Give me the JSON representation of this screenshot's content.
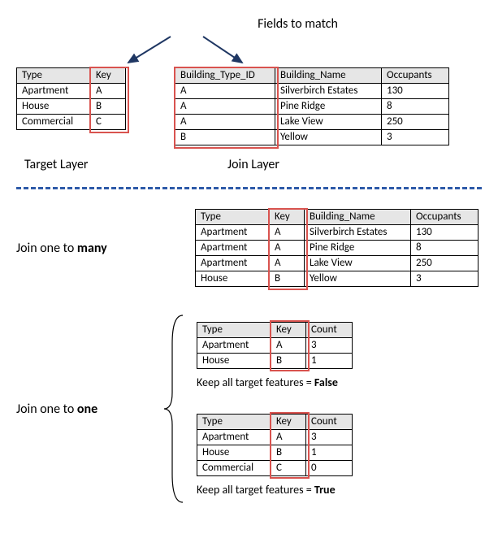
{
  "topLabel": "Fields to match",
  "targetLayerLabel": "Target Layer",
  "joinLayerLabel": "Join Layer",
  "targetTable": {
    "columns": [
      "Type",
      "Key"
    ],
    "rows": [
      [
        "Apartment",
        "A"
      ],
      [
        "House",
        "B"
      ],
      [
        "Commercial",
        "C"
      ]
    ],
    "highlightColIndex": 1
  },
  "joinTable": {
    "columns": [
      "Building_Type_ID",
      "Building_Name",
      "Occupants"
    ],
    "rows": [
      [
        "A",
        "Silverbirch Estates",
        "130"
      ],
      [
        "A",
        "Pine Ridge",
        "8"
      ],
      [
        "A",
        "Lake View",
        "250"
      ],
      [
        "B",
        "Yellow",
        "3"
      ]
    ],
    "highlightColIndex": 0
  },
  "oneToManyLabel_pre": "Join one to ",
  "oneToManyLabel_bold": "many",
  "oneToManyTable": {
    "columns": [
      "Type",
      "Key",
      "Building_Name",
      "Occupants"
    ],
    "rows": [
      [
        "Apartment",
        "A",
        "Silverbirch Estates",
        "130"
      ],
      [
        "Apartment",
        "A",
        "Pine Ridge",
        "8"
      ],
      [
        "Apartment",
        "A",
        "Lake View",
        "250"
      ],
      [
        "House",
        "B",
        "Yellow",
        "3"
      ]
    ],
    "highlightColIndex": 1
  },
  "oneToOneLabel_pre": "Join one to ",
  "oneToOneLabel_bold": "one",
  "oneToOneFalseTable": {
    "columns": [
      "Type",
      "Key",
      "Count"
    ],
    "rows": [
      [
        "Apartment",
        "A",
        "3"
      ],
      [
        "House",
        "B",
        "1"
      ]
    ],
    "highlightColIndex": 1
  },
  "captionFalse_pre": "Keep all target features = ",
  "captionFalse_bold": "False",
  "oneToOneTrueTable": {
    "columns": [
      "Type",
      "Key",
      "Count"
    ],
    "rows": [
      [
        "Apartment",
        "A",
        "3"
      ],
      [
        "House",
        "B",
        "1"
      ],
      [
        "Commercial",
        "C",
        "0"
      ]
    ],
    "highlightColIndex": 1
  },
  "captionTrue_pre": "Keep all target features = ",
  "captionTrue_bold": "True",
  "colors": {
    "highlight": "#d9534f",
    "divider": "#2e5aa8",
    "headerBg": "#e6e6e6",
    "arrow": "#1f3763"
  },
  "colWidths": {
    "Type": 78,
    "Key": 30,
    "Building_Type_ID": 110,
    "Building_Name": 118,
    "Occupants": 70,
    "Count": 44
  }
}
